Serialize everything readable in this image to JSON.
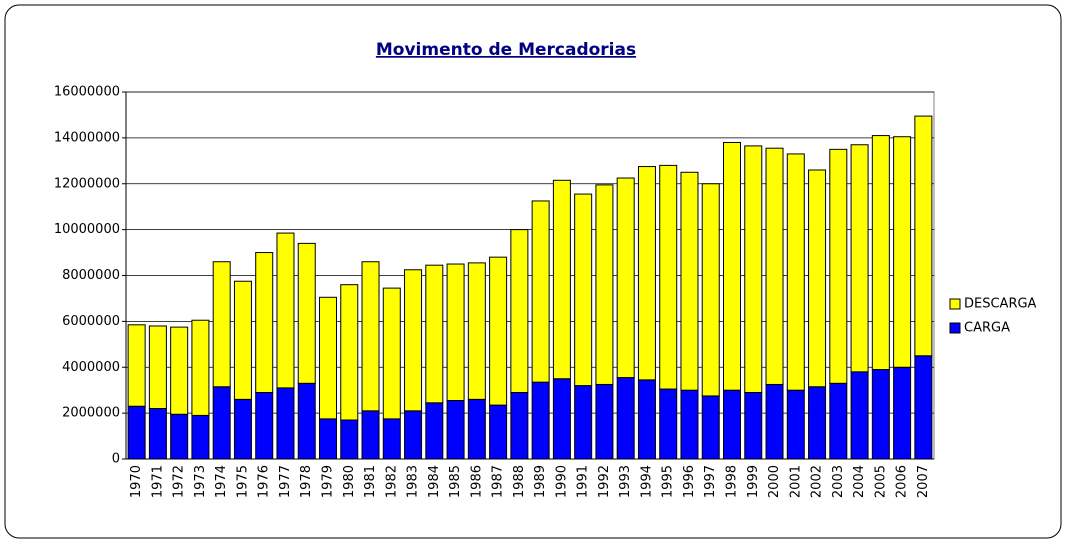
{
  "chart_data": {
    "type": "stacked-bar",
    "title": "Movimento de Mercadorias",
    "categories": [
      "1970",
      "1971",
      "1972",
      "1973",
      "1974",
      "1975",
      "1976",
      "1977",
      "1978",
      "1979",
      "1980",
      "1981",
      "1982",
      "1983",
      "1984",
      "1985",
      "1986",
      "1987",
      "1988",
      "1989",
      "1990",
      "1991",
      "1992",
      "1993",
      "1994",
      "1995",
      "1996",
      "1997",
      "1998",
      "1999",
      "2000",
      "2001",
      "2002",
      "2003",
      "2004",
      "2005",
      "2006",
      "2007"
    ],
    "series": [
      {
        "name": "CARGA",
        "color": "#0000ff",
        "values": [
          2300000,
          2200000,
          1950000,
          1900000,
          3150000,
          2600000,
          2900000,
          3100000,
          3300000,
          1750000,
          1700000,
          2100000,
          1750000,
          2100000,
          2450000,
          2550000,
          2600000,
          2350000,
          2900000,
          3350000,
          3500000,
          3200000,
          3250000,
          3550000,
          3450000,
          3050000,
          3000000,
          2750000,
          3000000,
          2900000,
          3250000,
          3000000,
          3150000,
          3300000,
          3800000,
          3900000,
          4000000,
          4500000
        ]
      },
      {
        "name": "DESCARGA",
        "color": "#ffff00",
        "values": [
          3550000,
          3600000,
          3800000,
          4150000,
          5450000,
          5150000,
          6100000,
          6750000,
          6100000,
          5300000,
          5900000,
          6500000,
          5700000,
          6150000,
          6000000,
          5950000,
          5950000,
          6450000,
          7100000,
          7900000,
          8650000,
          8350000,
          8700000,
          8700000,
          9300000,
          9750000,
          9500000,
          9250000,
          10800000,
          10750000,
          10300000,
          10300000,
          9450000,
          10200000,
          9900000,
          10200000,
          10050000,
          10450000
        ]
      }
    ],
    "ylim": [
      0,
      16000000
    ],
    "yticks": [
      0,
      2000000,
      4000000,
      6000000,
      8000000,
      10000000,
      12000000,
      14000000,
      16000000
    ],
    "grid": true,
    "legend": "right"
  }
}
